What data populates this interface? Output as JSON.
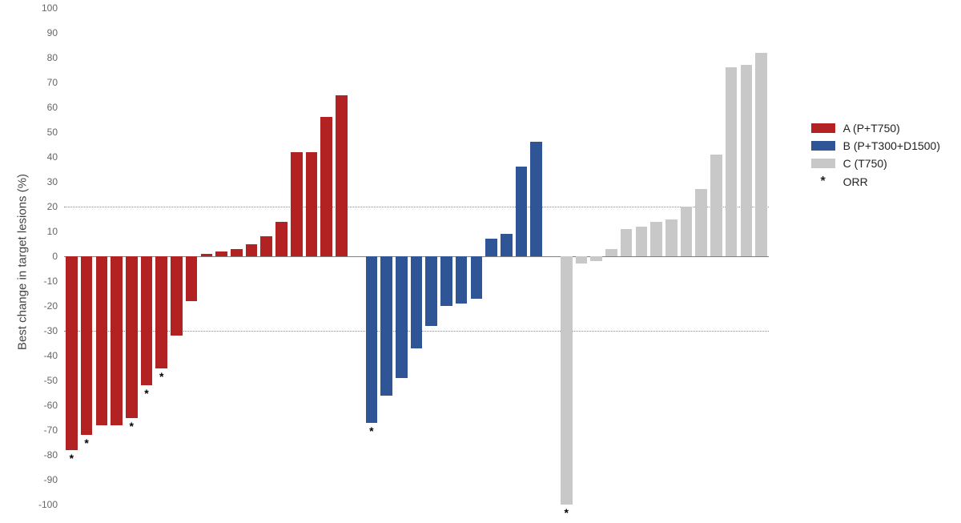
{
  "chart": {
    "type": "bar",
    "ylabel": "Best change in target lesions (%)",
    "ylabel_fontsize": 15,
    "ylim": [
      -100,
      100
    ],
    "yticks": [
      -100,
      -90,
      -80,
      -70,
      -60,
      -50,
      -40,
      -30,
      -20,
      -10,
      0,
      10,
      20,
      30,
      40,
      50,
      60,
      70,
      80,
      90,
      100
    ],
    "tick_fontsize": 12,
    "tick_color": "#666666",
    "grid_color": "#d9d9d9",
    "baseline_color": "#808080",
    "ref_lines": [
      20,
      -30
    ],
    "ref_line_color": "#888888",
    "background_color": "#ffffff",
    "bar_fill_ratio": 0.78,
    "orr_symbol": "*",
    "series": {
      "A": {
        "label": "A (P+T750)",
        "color": "#b22222"
      },
      "B": {
        "label": "B (P+T300+D1500)",
        "color": "#2f5597"
      },
      "C": {
        "label": "C (T750)",
        "color": "#c8c8c8"
      }
    },
    "legend": {
      "orr_label": "ORR",
      "fontsize": 14
    },
    "bars": [
      {
        "series": "A",
        "value": -78,
        "orr": true
      },
      {
        "series": "A",
        "value": -72,
        "orr": true
      },
      {
        "series": "A",
        "value": -68,
        "orr": false
      },
      {
        "series": "A",
        "value": -68,
        "orr": false
      },
      {
        "series": "A",
        "value": -65,
        "orr": true
      },
      {
        "series": "A",
        "value": -52,
        "orr": true
      },
      {
        "series": "A",
        "value": -45,
        "orr": true
      },
      {
        "series": "A",
        "value": -32,
        "orr": false
      },
      {
        "series": "A",
        "value": -18,
        "orr": false
      },
      {
        "series": "A",
        "value": 1,
        "orr": false
      },
      {
        "series": "A",
        "value": 2,
        "orr": false
      },
      {
        "series": "A",
        "value": 3,
        "orr": false
      },
      {
        "series": "A",
        "value": 5,
        "orr": false
      },
      {
        "series": "A",
        "value": 8,
        "orr": false
      },
      {
        "series": "A",
        "value": 14,
        "orr": false
      },
      {
        "series": "A",
        "value": 42,
        "orr": false
      },
      {
        "series": "A",
        "value": 42,
        "orr": false
      },
      {
        "series": "A",
        "value": 56,
        "orr": false
      },
      {
        "series": "A",
        "value": 65,
        "orr": false
      },
      {
        "series": "B",
        "value": -67,
        "orr": true
      },
      {
        "series": "B",
        "value": -56,
        "orr": false
      },
      {
        "series": "B",
        "value": -49,
        "orr": false
      },
      {
        "series": "B",
        "value": -37,
        "orr": false
      },
      {
        "series": "B",
        "value": -28,
        "orr": false
      },
      {
        "series": "B",
        "value": -20,
        "orr": false
      },
      {
        "series": "B",
        "value": -19,
        "orr": false
      },
      {
        "series": "B",
        "value": -17,
        "orr": false
      },
      {
        "series": "B",
        "value": 7,
        "orr": false
      },
      {
        "series": "B",
        "value": 9,
        "orr": false
      },
      {
        "series": "B",
        "value": 36,
        "orr": false
      },
      {
        "series": "B",
        "value": 46,
        "orr": false
      },
      {
        "series": "C",
        "value": -100,
        "orr": true
      },
      {
        "series": "C",
        "value": -3,
        "orr": false
      },
      {
        "series": "C",
        "value": -2,
        "orr": false
      },
      {
        "series": "C",
        "value": 3,
        "orr": false
      },
      {
        "series": "C",
        "value": 11,
        "orr": false
      },
      {
        "series": "C",
        "value": 12,
        "orr": false
      },
      {
        "series": "C",
        "value": 14,
        "orr": false
      },
      {
        "series": "C",
        "value": 15,
        "orr": false
      },
      {
        "series": "C",
        "value": 20,
        "orr": false
      },
      {
        "series": "C",
        "value": 27,
        "orr": false
      },
      {
        "series": "C",
        "value": 41,
        "orr": false
      },
      {
        "series": "C",
        "value": 76,
        "orr": false
      },
      {
        "series": "C",
        "value": 77,
        "orr": false
      },
      {
        "series": "C",
        "value": 82,
        "orr": false
      }
    ]
  }
}
